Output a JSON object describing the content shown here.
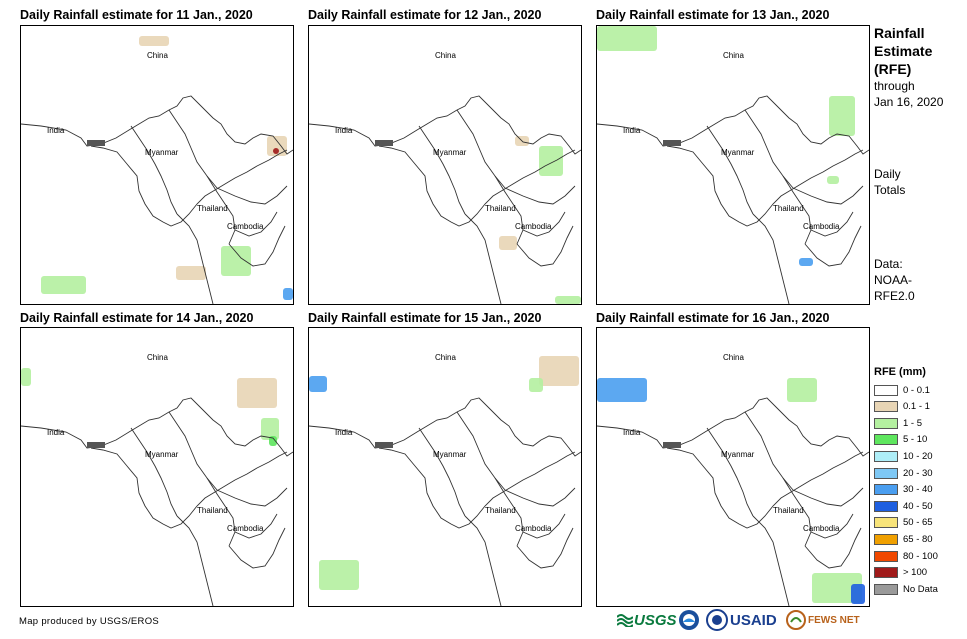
{
  "panels": [
    {
      "title": "Daily Rainfall estimate for 11 Jan., 2020",
      "labels": {
        "china": "China",
        "india": "India",
        "myanmar": "Myanmar",
        "thailand": "Thailand",
        "cambodia": "Cambodia"
      }
    },
    {
      "title": "Daily Rainfall estimate for 12 Jan., 2020",
      "labels": {
        "china": "China",
        "india": "India",
        "myanmar": "Myanmar",
        "thailand": "Thailand",
        "cambodia": "Cambodia"
      }
    },
    {
      "title": "Daily Rainfall estimate for 13 Jan., 2020",
      "labels": {
        "china": "China",
        "india": "India",
        "myanmar": "Myanmar",
        "thailand": "Thailand",
        "cambodia": "Cambodia"
      }
    },
    {
      "title": "Daily Rainfall estimate for 14 Jan., 2020",
      "labels": {
        "china": "China",
        "india": "India",
        "myanmar": "Myanmar",
        "thailand": "Thailand",
        "cambodia": "Cambodia"
      }
    },
    {
      "title": "Daily Rainfall estimate for 15 Jan., 2020",
      "labels": {
        "china": "China",
        "india": "India",
        "myanmar": "Myanmar",
        "thailand": "Thailand",
        "cambodia": "Cambodia"
      }
    },
    {
      "title": "Daily Rainfall estimate for 16 Jan., 2020",
      "labels": {
        "china": "China",
        "india": "India",
        "myanmar": "Myanmar",
        "thailand": "Thailand",
        "cambodia": "Cambodia"
      }
    }
  ],
  "side": {
    "title_lines": [
      "Rainfall",
      "Estimate",
      "(RFE)"
    ],
    "through": "through",
    "date": "Jan 16, 2020",
    "totals_lines": [
      "Daily",
      "Totals"
    ],
    "data_lines": [
      "Data:",
      "NOAA-",
      "RFE2.0"
    ]
  },
  "legend": {
    "title": "RFE (mm)",
    "items": [
      {
        "label": "0 - 0.1",
        "color": "#ffffff"
      },
      {
        "label": "0.1 - 1",
        "color": "#e8d5b5"
      },
      {
        "label": "1 - 5",
        "color": "#b4f0a0"
      },
      {
        "label": "5 - 10",
        "color": "#5ee65e"
      },
      {
        "label": "10 - 20",
        "color": "#aeeef8"
      },
      {
        "label": "20 - 30",
        "color": "#7ec8f5"
      },
      {
        "label": "30 - 40",
        "color": "#4a9ef0"
      },
      {
        "label": "40 - 50",
        "color": "#1e5fe0"
      },
      {
        "label": "50 - 65",
        "color": "#f8e47a"
      },
      {
        "label": "65 - 80",
        "color": "#f0a000"
      },
      {
        "label": "80 - 100",
        "color": "#f04800"
      },
      {
        "label": "> 100",
        "color": "#a01a1a"
      },
      {
        "label": "No Data",
        "color": "#9a9a9a"
      }
    ]
  },
  "credit": "Map produced by USGS/EROS",
  "logos": {
    "usgs": "USGS",
    "usaid": "USAID",
    "fews": "FEWS NET"
  }
}
